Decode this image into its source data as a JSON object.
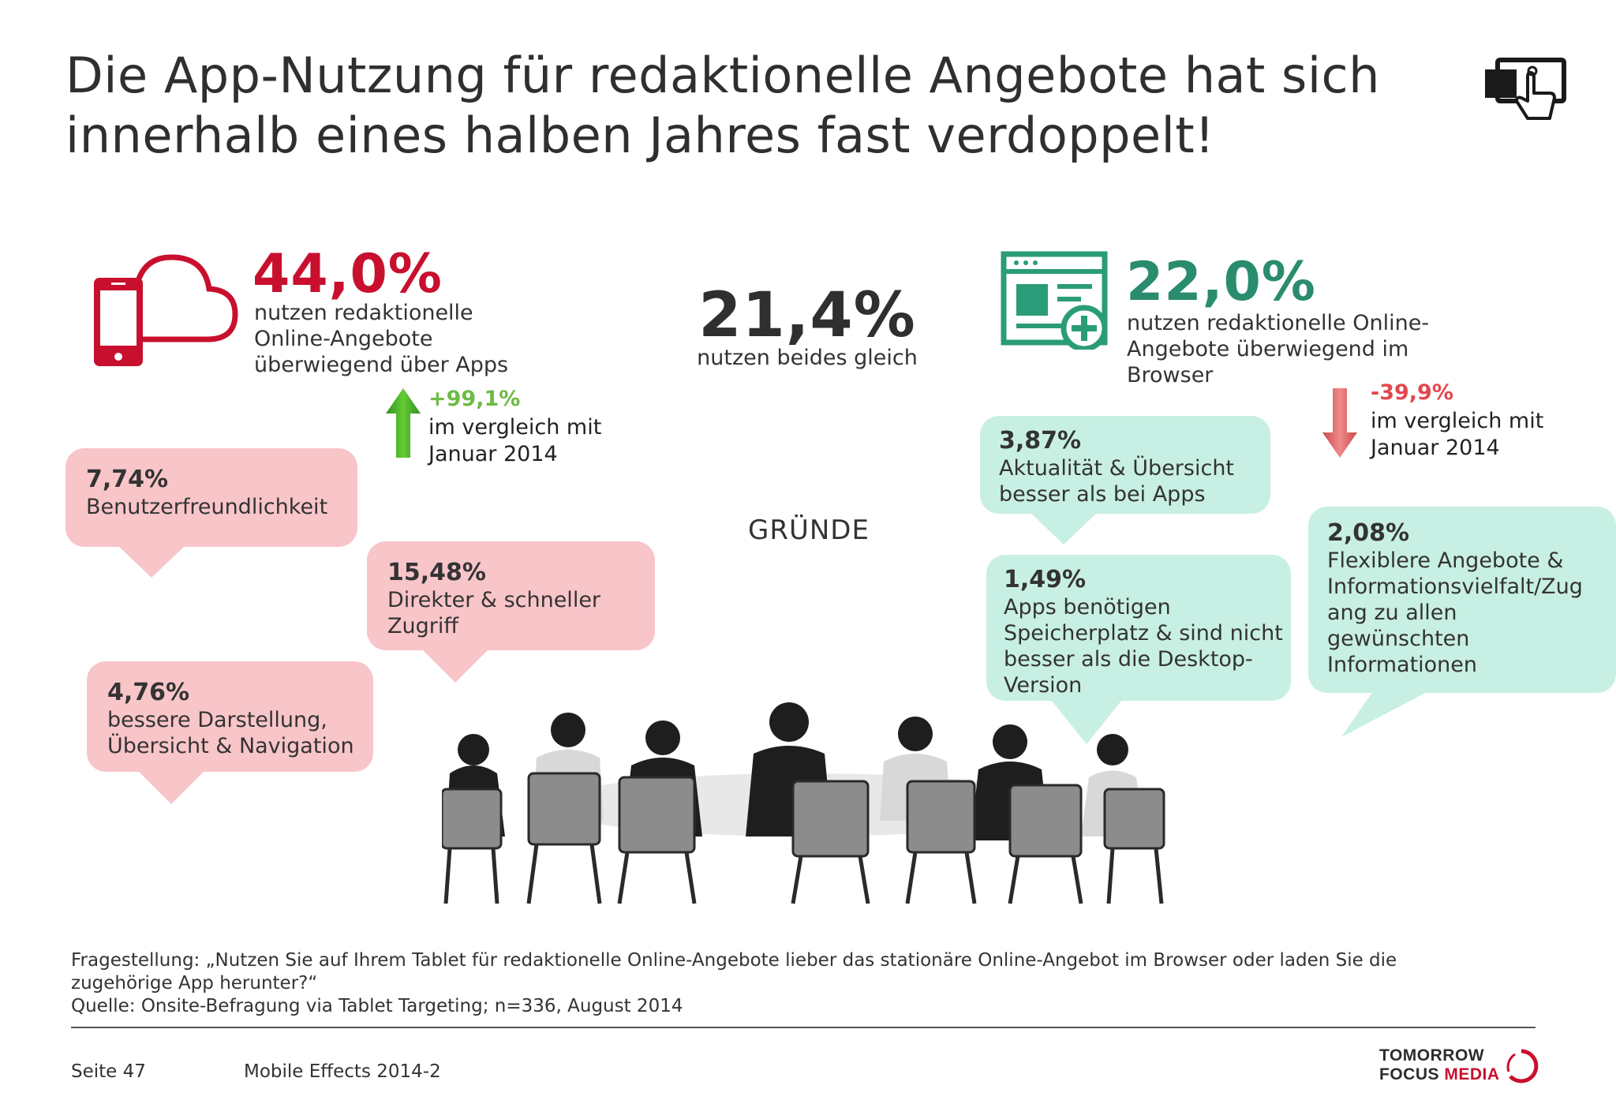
{
  "title": {
    "line1": "Die App-Nutzung für redaktionelle Angebote hat sich",
    "line2": "innerhalb eines halben Jahres fast verdoppelt!"
  },
  "apps": {
    "percent": "44,0%",
    "text": [
      "nutzen redaktionelle",
      "Online-Angebote",
      "überwiegend über Apps"
    ],
    "change": "+99,1%",
    "compare": [
      "im vergleich mit",
      "Januar 2014"
    ],
    "color": "#c8102e"
  },
  "both": {
    "percent": "21,4%",
    "text": "nutzen beides gleich"
  },
  "browser": {
    "percent": "22,0%",
    "text": [
      "nutzen redaktionelle Online-",
      "Angebote überwiegend im",
      "Browser"
    ],
    "change": "-39,9%",
    "compare": [
      "im vergleich mit",
      "Januar 2014"
    ],
    "color": "#2a8c6e"
  },
  "reasons_label": "GRÜNDE",
  "app_reasons": [
    {
      "percent": "7,74%",
      "lines": [
        "Benutzerfreundlichkeit"
      ]
    },
    {
      "percent": "15,48%",
      "lines": [
        "Direkter & schneller",
        "Zugriff"
      ]
    },
    {
      "percent": "4,76%",
      "lines": [
        "bessere Darstellung,",
        "Übersicht & Navigation"
      ]
    }
  ],
  "browser_reasons": [
    {
      "percent": "3,87%",
      "lines": [
        "Aktualität & Übersicht",
        "besser als bei Apps"
      ]
    },
    {
      "percent": "1,49%",
      "lines": [
        "Apps benötigen",
        "Speicherplatz & sind nicht",
        "besser als die Desktop-",
        "Version"
      ]
    },
    {
      "percent": "2,08%",
      "lines": [
        "Flexiblere Angebote &",
        "Informationsvielfalt/Zug",
        "ang zu allen",
        "gewünschten",
        "Informationen"
      ]
    }
  ],
  "footer": {
    "question": [
      "Fragestellung: „Nutzen Sie auf Ihrem Tablet für redaktionelle Online-Angebote lieber das stationäre Online-Angebot im Browser oder laden Sie die",
      "zugehörige App herunter?“"
    ],
    "source": "Quelle: Onsite-Befragung via Tablet Targeting; n=336, August 2014",
    "page": "Seite 47",
    "report": "Mobile Effects 2014-2"
  },
  "logo": {
    "line1": "TOMORROW",
    "line2a": "FOCUS",
    "line2b": "MEDIA"
  },
  "icons": {
    "tablet": "tablet-touch-icon",
    "apps": "phone-cloud-icon",
    "browser": "browser-add-icon",
    "up": "arrow-up-icon",
    "down": "arrow-down-icon"
  }
}
